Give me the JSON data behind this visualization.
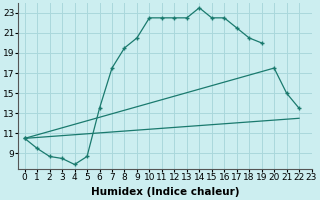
{
  "xlabel": "Humidex (Indice chaleur)",
  "bg_color": "#cceef0",
  "grid_color": "#aad8dc",
  "line_color": "#1a7a6e",
  "curve1_x": [
    0,
    1,
    2,
    3,
    4,
    5,
    6,
    7,
    8,
    9,
    10,
    11,
    12,
    13,
    14,
    15,
    16,
    17,
    18,
    19
  ],
  "curve1_y": [
    10.5,
    9.5,
    8.7,
    8.5,
    7.9,
    8.7,
    13.5,
    17.5,
    19.5,
    20.5,
    22.5,
    22.5,
    22.5,
    22.5,
    23.5,
    22.5,
    22.5,
    21.5,
    20.5,
    20.0
  ],
  "curve2_x": [
    0,
    20,
    21,
    22
  ],
  "curve2_y": [
    10.5,
    17.5,
    15.0,
    13.5
  ],
  "curve3_x": [
    0,
    22
  ],
  "curve3_y": [
    10.5,
    12.5
  ],
  "ylim": [
    7.5,
    24.0
  ],
  "xlim": [
    -0.5,
    23.0
  ],
  "yticks": [
    9,
    11,
    13,
    15,
    17,
    19,
    21,
    23
  ],
  "xticks": [
    0,
    1,
    2,
    3,
    4,
    5,
    6,
    7,
    8,
    9,
    10,
    11,
    12,
    13,
    14,
    15,
    16,
    17,
    18,
    19,
    20,
    21,
    22,
    23
  ],
  "xlabel_fontsize": 7.5,
  "tick_fontsize": 6.5
}
